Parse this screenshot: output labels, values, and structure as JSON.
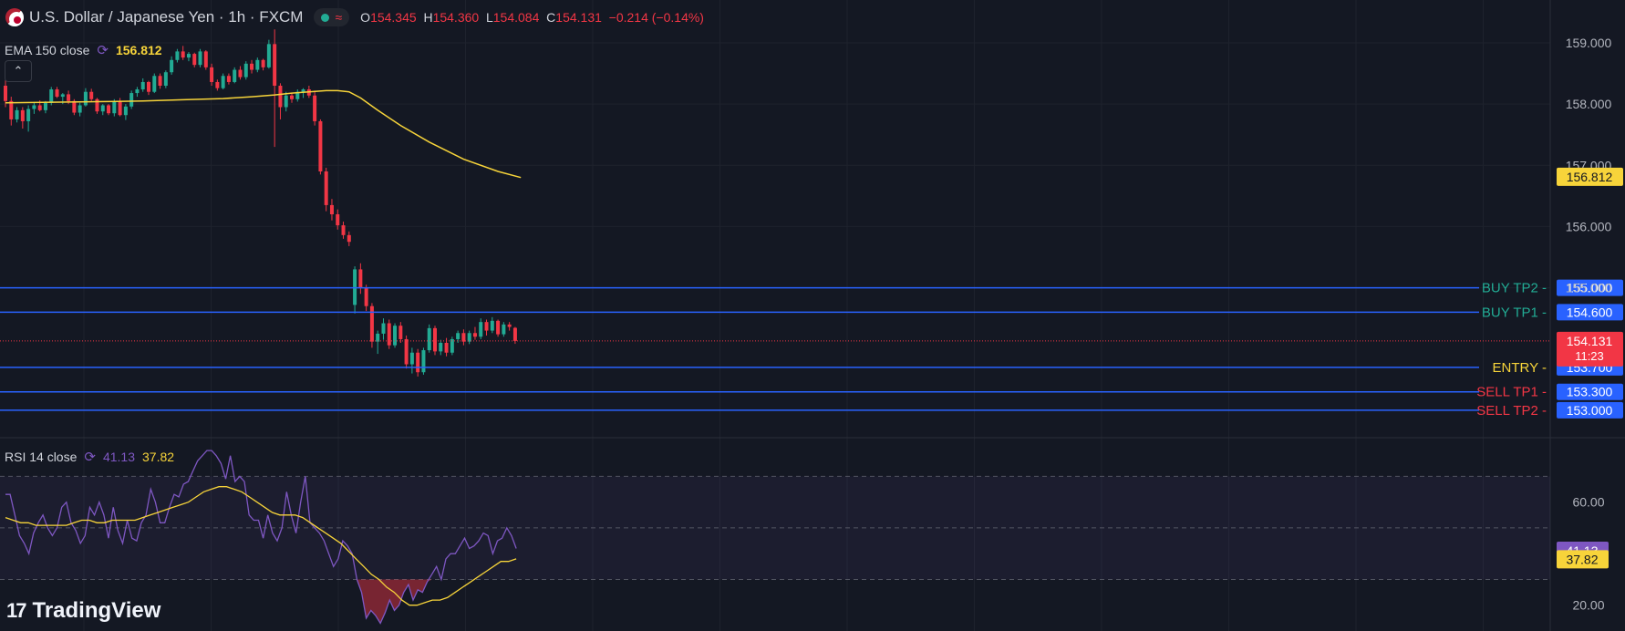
{
  "header": {
    "title": "U.S. Dollar / Japanese Yen · 1h · FXCM",
    "flag_icon": "usd-jpy-flag-icon",
    "ohlc": {
      "o_label": "O",
      "o": "154.345",
      "h_label": "H",
      "h": "154.360",
      "l_label": "L",
      "l": "154.084",
      "c_label": "C",
      "c": "154.131",
      "change": "−0.214 (−0.14%)"
    }
  },
  "ema": {
    "label": "EMA 150 close",
    "value": "156.812",
    "color": "#f7d43a"
  },
  "rsi": {
    "label": "RSI 14 close",
    "value": "41.13",
    "ma_value": "37.82",
    "color": "#7e57c2",
    "ma_color": "#f7d43a"
  },
  "logo": {
    "text": "TradingView"
  },
  "colors": {
    "up": "#22ab94",
    "down": "#f23645",
    "level_line": "#2962ff",
    "bg": "#141823"
  },
  "chart_data": [
    {
      "type": "candlestick",
      "title": "U.S. Dollar / Japanese Yen · 1h · FXCM",
      "price_axis_ticks": [
        "159.000",
        "158.000",
        "157.000",
        "156.000",
        "155.000"
      ],
      "price_range": [
        152.7,
        159.7
      ],
      "last_price": "154.131",
      "countdown": "11:23",
      "levels": [
        {
          "name": "BUY TP2",
          "price": "155.000",
          "label_color": "#22ab94"
        },
        {
          "name": "BUY TP1",
          "price": "154.600",
          "label_color": "#22ab94"
        },
        {
          "name": "ENTRY",
          "price": "153.700",
          "label_color": "#f7d43a"
        },
        {
          "name": "SELL TP1",
          "price": "153.300",
          "label_color": "#f23645"
        },
        {
          "name": "SELL TP2",
          "price": "153.000",
          "label_color": "#f23645"
        }
      ],
      "candles": [
        [
          158.3,
          158.4,
          157.95,
          158.05
        ],
        [
          158.05,
          158.12,
          157.65,
          157.75
        ],
        [
          157.75,
          157.95,
          157.7,
          157.9
        ],
        [
          157.9,
          157.95,
          157.6,
          157.72
        ],
        [
          157.72,
          157.98,
          157.55,
          157.92
        ],
        [
          157.92,
          158.02,
          157.84,
          157.98
        ],
        [
          157.98,
          158.06,
          157.88,
          157.9
        ],
        [
          157.9,
          158.05,
          157.85,
          158.02
        ],
        [
          158.02,
          158.28,
          157.98,
          158.24
        ],
        [
          158.24,
          158.28,
          158.1,
          158.12
        ],
        [
          158.12,
          158.18,
          158.0,
          158.16
        ],
        [
          158.16,
          158.22,
          158.0,
          158.05
        ],
        [
          158.05,
          158.08,
          157.82,
          157.86
        ],
        [
          157.86,
          158.02,
          157.8,
          157.98
        ],
        [
          157.98,
          158.26,
          157.96,
          158.2
        ],
        [
          158.2,
          158.25,
          158.05,
          158.08
        ],
        [
          158.08,
          158.1,
          157.84,
          157.88
        ],
        [
          157.88,
          158.0,
          157.82,
          157.98
        ],
        [
          157.98,
          158.0,
          157.82,
          157.85
        ],
        [
          157.85,
          158.08,
          157.8,
          158.04
        ],
        [
          158.04,
          158.1,
          157.8,
          157.82
        ],
        [
          157.82,
          158.0,
          157.74,
          157.96
        ],
        [
          157.96,
          158.22,
          157.92,
          158.18
        ],
        [
          158.18,
          158.28,
          158.12,
          158.24
        ],
        [
          158.24,
          158.42,
          158.2,
          158.36
        ],
        [
          158.36,
          158.38,
          158.15,
          158.2
        ],
        [
          158.2,
          158.5,
          158.18,
          158.46
        ],
        [
          158.46,
          158.5,
          158.25,
          158.3
        ],
        [
          158.3,
          158.55,
          158.26,
          158.52
        ],
        [
          158.52,
          158.78,
          158.48,
          158.72
        ],
        [
          158.72,
          158.9,
          158.68,
          158.86
        ],
        [
          158.86,
          158.95,
          158.72,
          158.76
        ],
        [
          158.76,
          158.85,
          158.7,
          158.82
        ],
        [
          158.82,
          158.84,
          158.6,
          158.64
        ],
        [
          158.64,
          158.9,
          158.6,
          158.86
        ],
        [
          158.86,
          158.88,
          158.56,
          158.6
        ],
        [
          158.6,
          158.66,
          158.3,
          158.36
        ],
        [
          158.36,
          158.4,
          158.22,
          158.26
        ],
        [
          158.26,
          158.5,
          158.24,
          158.46
        ],
        [
          158.46,
          158.5,
          158.32,
          158.36
        ],
        [
          158.36,
          158.6,
          158.34,
          158.56
        ],
        [
          158.56,
          158.62,
          158.4,
          158.44
        ],
        [
          158.44,
          158.7,
          158.4,
          158.66
        ],
        [
          158.66,
          158.72,
          158.5,
          158.56
        ],
        [
          158.56,
          158.76,
          158.52,
          158.72
        ],
        [
          158.72,
          158.74,
          158.55,
          158.6
        ],
        [
          158.6,
          159.05,
          158.58,
          158.98
        ],
        [
          158.98,
          159.22,
          157.3,
          158.3
        ],
        [
          158.3,
          158.34,
          157.75,
          157.95
        ],
        [
          157.95,
          158.2,
          157.88,
          158.14
        ],
        [
          158.14,
          158.18,
          158.02,
          158.08
        ],
        [
          158.08,
          158.24,
          158.04,
          158.2
        ],
        [
          158.2,
          158.26,
          158.1,
          158.24
        ],
        [
          158.24,
          158.3,
          158.1,
          158.14
        ],
        [
          158.14,
          158.22,
          157.65,
          157.72
        ],
        [
          157.72,
          157.75,
          156.85,
          156.9
        ],
        [
          156.9,
          156.96,
          156.25,
          156.35
        ],
        [
          156.35,
          156.45,
          156.1,
          156.2
        ],
        [
          156.2,
          156.28,
          155.95,
          156.02
        ],
        [
          156.02,
          156.08,
          155.8,
          155.86
        ],
        [
          155.86,
          155.92,
          155.68,
          155.75
        ],
        [
          154.72,
          155.35,
          154.58,
          155.3
        ],
        [
          155.3,
          155.4,
          154.9,
          155.0
        ],
        [
          155.0,
          155.05,
          154.62,
          154.7
        ],
        [
          154.7,
          154.75,
          154.02,
          154.12
        ],
        [
          154.12,
          154.3,
          153.92,
          154.25
        ],
        [
          154.25,
          154.5,
          154.15,
          154.42
        ],
        [
          154.42,
          154.48,
          154.0,
          154.06
        ],
        [
          154.06,
          154.42,
          154.02,
          154.38
        ],
        [
          154.38,
          154.44,
          154.1,
          154.16
        ],
        [
          154.16,
          154.22,
          153.68,
          153.75
        ],
        [
          153.75,
          154.02,
          153.6,
          153.94
        ],
        [
          153.94,
          154.0,
          153.55,
          153.62
        ],
        [
          153.62,
          154.02,
          153.58,
          153.98
        ],
        [
          153.98,
          154.4,
          153.94,
          154.34
        ],
        [
          154.34,
          154.38,
          153.9,
          153.96
        ],
        [
          153.96,
          154.15,
          153.9,
          154.1
        ],
        [
          154.1,
          154.18,
          153.88,
          153.94
        ],
        [
          153.94,
          154.2,
          153.9,
          154.16
        ],
        [
          154.16,
          154.3,
          154.1,
          154.26
        ],
        [
          154.26,
          154.32,
          154.06,
          154.12
        ],
        [
          154.12,
          154.3,
          154.08,
          154.26
        ],
        [
          154.26,
          154.36,
          154.15,
          154.2
        ],
        [
          154.2,
          154.5,
          154.16,
          154.44
        ],
        [
          154.44,
          154.48,
          154.22,
          154.3
        ],
        [
          154.3,
          154.52,
          154.26,
          154.46
        ],
        [
          154.46,
          154.48,
          154.2,
          154.24
        ],
        [
          154.24,
          154.44,
          154.2,
          154.4
        ],
        [
          154.4,
          154.44,
          154.3,
          154.36
        ],
        [
          154.345,
          154.36,
          154.084,
          154.131
        ]
      ],
      "ema150": [
        158.02,
        158.03,
        158.04,
        158.05,
        158.07,
        158.09,
        158.12,
        158.15,
        158.18,
        158.2,
        158.22,
        158.22,
        158.2,
        158.1,
        157.9,
        157.65,
        157.38,
        157.1,
        156.9,
        156.8
      ],
      "ema150_x_indices": [
        0,
        8,
        16,
        24,
        31,
        38,
        43,
        47,
        50,
        53,
        56,
        58,
        60,
        62,
        65,
        69,
        74,
        80,
        86,
        90
      ]
    },
    {
      "type": "line",
      "title": "RSI 14 close",
      "axis_ticks": [
        "60.00",
        "20.00"
      ],
      "y_range": [
        10,
        85
      ],
      "bands": [
        30,
        50,
        70
      ],
      "series": [
        {
          "name": "RSI 14 close",
          "values": [
            63,
            63,
            55,
            47,
            44,
            40,
            48,
            52,
            55,
            50,
            47,
            50,
            58,
            60,
            52,
            49,
            44,
            47,
            58,
            55,
            60,
            55,
            46,
            58,
            49,
            44,
            53,
            46,
            45,
            52,
            55,
            65,
            60,
            52,
            52,
            58,
            63,
            62,
            67,
            68,
            72,
            76,
            78,
            80,
            80,
            78,
            75,
            69,
            78,
            68,
            70,
            68,
            55,
            53,
            53,
            46,
            55,
            48,
            45,
            50,
            64,
            55,
            48,
            60,
            70,
            52,
            50,
            48,
            45,
            40,
            35,
            38,
            45,
            43,
            40,
            30,
            25,
            15,
            18,
            16,
            13,
            17,
            22,
            18,
            20,
            25,
            28,
            22,
            26,
            25,
            29,
            32,
            35,
            30,
            38,
            40,
            40,
            43,
            46,
            42,
            43,
            45,
            48,
            47,
            40,
            45,
            46,
            50,
            47,
            42
          ]
        },
        {
          "name": "RSI-based MA",
          "values": [
            54,
            53,
            52,
            52,
            51,
            51,
            51,
            51,
            51,
            52,
            53,
            53,
            52,
            52,
            53,
            53,
            53,
            53,
            54,
            55,
            56,
            57,
            58,
            59,
            60,
            62,
            64,
            65,
            66,
            66,
            65,
            64,
            62,
            60,
            58,
            56,
            55,
            55,
            55,
            54,
            52,
            50,
            48,
            46,
            44,
            41,
            38,
            35,
            32,
            30,
            27,
            25,
            22,
            20,
            20,
            21,
            22,
            22,
            23,
            25,
            27,
            29,
            31,
            33,
            35,
            37,
            37,
            38
          ]
        }
      ]
    }
  ]
}
